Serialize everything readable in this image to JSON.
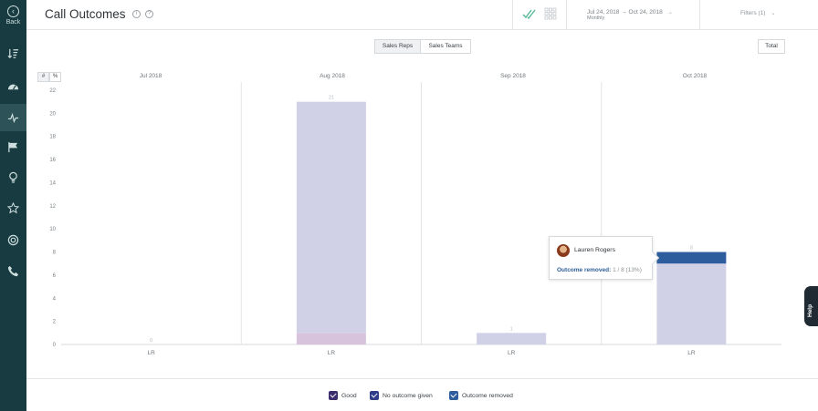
{
  "sidebar": {
    "back_label": "Back",
    "items": [
      {
        "icon": "sort-icon"
      },
      {
        "icon": "dashboard-icon"
      },
      {
        "icon": "activity-icon",
        "active": true
      },
      {
        "icon": "flag-icon"
      },
      {
        "icon": "lightbulb-icon"
      },
      {
        "icon": "star-icon"
      },
      {
        "icon": "target-icon"
      },
      {
        "icon": "phone-icon"
      }
    ]
  },
  "header": {
    "title": "Call Outcomes",
    "info_icon": "i",
    "help_icon": "?",
    "date_range": "Jul 24, 2018 → Oct 24, 2018",
    "date_granularity": "Monthly",
    "filters": "Filters (1)"
  },
  "toolbar": {
    "tab_sales_reps": "Sales Reps",
    "tab_sales_teams": "Sales Teams",
    "total_button": "Total",
    "count_toggle": "#",
    "percent_toggle": "%"
  },
  "chart_data": {
    "type": "bar",
    "months": [
      "Jul 2018",
      "Aug 2018",
      "Sep 2018",
      "Oct 2018"
    ],
    "rep_label": "LR",
    "ylim": [
      0,
      22
    ],
    "yticks": [
      0,
      2,
      4,
      6,
      8,
      10,
      12,
      14,
      16,
      18,
      20,
      22
    ],
    "series": [
      {
        "name": "Good",
        "color": "#d8c3dc",
        "values": [
          0,
          1,
          0,
          0
        ]
      },
      {
        "name": "No outcome given",
        "color": "#d0d1e6",
        "values": [
          0,
          20,
          1,
          7
        ]
      },
      {
        "name": "Outcome removed",
        "color": "#2d5d9c",
        "values": [
          0,
          0,
          0,
          1
        ]
      }
    ],
    "totals": [
      0,
      21,
      1,
      8
    ]
  },
  "tooltip": {
    "name": "Lauren Rogers",
    "stat_key": "Outcome removed:",
    "stat_value": "1 / 8 (13%)"
  },
  "help_tab": "Help",
  "legend": [
    {
      "label": "Good",
      "color": "#3b2d6e"
    },
    {
      "label": "No outcome given",
      "color": "#2f3d8a"
    },
    {
      "label": "Outcome removed",
      "color": "#2d5d9c"
    }
  ]
}
